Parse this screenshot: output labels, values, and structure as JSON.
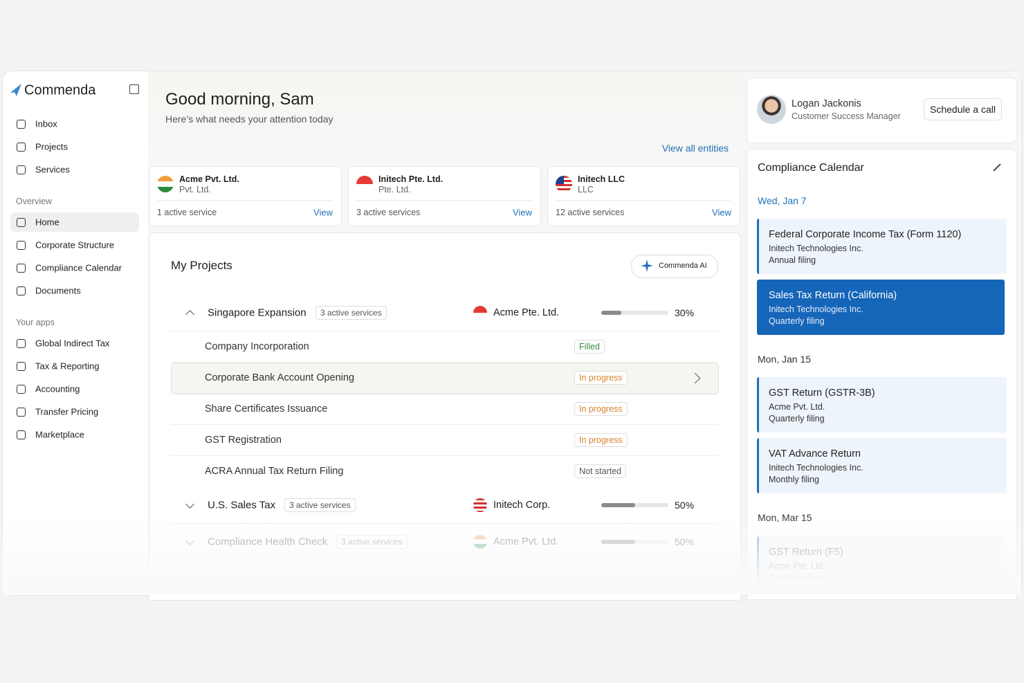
{
  "brand": "Commenda",
  "nav": {
    "main": [
      "Inbox",
      "Projects",
      "Services"
    ],
    "overview_label": "Overview",
    "overview": [
      "Home",
      "Corporate Structure",
      "Compliance Calendar",
      "Documents"
    ],
    "apps_label": "Your apps",
    "apps": [
      "Global Indirect Tax",
      "Tax & Reporting",
      "Accounting",
      "Transfer Pricing",
      "Marketplace"
    ]
  },
  "header": {
    "greeting": "Good morning, Sam",
    "subtitle": "Here’s what needs your attention today",
    "view_all": "View all entities"
  },
  "entities": [
    {
      "name": "Acme Pvt. Ltd.",
      "type": "Pvt. Ltd.",
      "services": "1 active service",
      "action": "View"
    },
    {
      "name": "Initech Pte. Ltd.",
      "type": "Pte. Ltd.",
      "services": "3 active services",
      "action": "View"
    },
    {
      "name": "Initech LLC",
      "type": "LLC",
      "services": "12 active services",
      "action": "View"
    }
  ],
  "projects": {
    "title": "My Projects",
    "ai_button": "Commenda AI",
    "groups": [
      {
        "name": "Singapore Expansion",
        "badge": "3 active services",
        "entity": "Acme Pte. Ltd.",
        "progress": 30,
        "progress_label": "30%",
        "tasks": [
          {
            "name": "Company Incorporation",
            "status": "Filled",
            "color": "#3d8b3d"
          },
          {
            "name": "Corporate Bank Account Opening",
            "status": "In progress",
            "color": "#d9822b"
          },
          {
            "name": "Share Certificates Issuance",
            "status": "In progress",
            "color": "#d9822b"
          },
          {
            "name": "GST Registration",
            "status": "In progress",
            "color": "#d9822b"
          },
          {
            "name": "ACRA Annual Tax Return Filing",
            "status": "Not started",
            "color": "#555555"
          }
        ]
      },
      {
        "name": "U.S. Sales Tax",
        "badge": "3 active services",
        "entity": "Initech Corp.",
        "progress": 50,
        "progress_label": "50%"
      },
      {
        "name": "Compliance Health Check",
        "badge": "3 active services",
        "entity": "Acme Pvt. Ltd.",
        "progress": 50,
        "progress_label": "50%"
      }
    ]
  },
  "manager": {
    "name": "Logan Jackonis",
    "role": "Customer Success Manager",
    "action": "Schedule a call"
  },
  "calendar": {
    "title": "Compliance Calendar",
    "days": [
      {
        "date": "Wed, Jan 7",
        "items": [
          {
            "title": "Federal Corporate Income Tax (Form 1120)",
            "entity": "Initech Technologies Inc.",
            "frequency": "Annual filing"
          },
          {
            "title": "Sales Tax Return (California)",
            "entity": "Initech Technologies Inc.",
            "frequency": "Quarterly filing"
          }
        ]
      },
      {
        "date": "Mon, Jan 15",
        "items": [
          {
            "title": "GST Return (GSTR-3B)",
            "entity": "Acme Pvt. Ltd.",
            "frequency": "Quarterly filing"
          },
          {
            "title": "VAT Advance Return",
            "entity": "Initech Technologies Inc.",
            "frequency": "Monthly filing"
          }
        ]
      },
      {
        "date": "Mon, Mar 15",
        "items": [
          {
            "title": "GST Return (F5)",
            "entity": "Acme Pte. Ltd.",
            "frequency": "Quarterly filing"
          }
        ]
      }
    ]
  }
}
